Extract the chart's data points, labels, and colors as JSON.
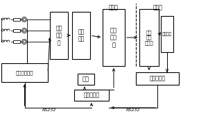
{
  "bg_color": "#ffffff",
  "line_color": "#000000",
  "box_color": "#ffffff",
  "text_color": "#000000",
  "label_ac_side": "交流侧",
  "label_dc_side": "直流侧",
  "box_gaoya": "高压\n控制\n柜",
  "box_duolu": "多路\n整变",
  "box_zhengliugui": "多路\n整流\n柜",
  "box_duolu_dc": "多路\n电流\n互感器",
  "box_sanxiang": "三相交流仪表",
  "box_xianshi": "显示",
  "box_chengkong": "程控计算机",
  "box_zhiliu": "直流多功能",
  "label_rs232_left": "RS232",
  "label_rs232_right": "RS232",
  "label_jidian": "及电压件"
}
